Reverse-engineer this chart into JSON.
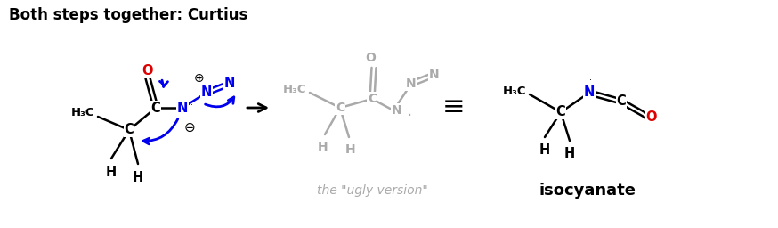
{
  "title": "Both steps together: Curtius",
  "title_color": "#000000",
  "title_fontsize": 12,
  "title_fontweight": "bold",
  "bg_color": "#ffffff",
  "ugly_version_label": "the \"ugly version\"",
  "ugly_version_color": "#aaaaaa",
  "ugly_version_fontsize": 10,
  "isocyanate_label": "isocyanate",
  "isocyanate_fontsize": 13,
  "isocyanate_fontweight": "bold",
  "colors": {
    "black": "#000000",
    "red": "#dd0000",
    "blue": "#0000ee",
    "gray": "#aaaaaa",
    "white": "#ffffff"
  }
}
